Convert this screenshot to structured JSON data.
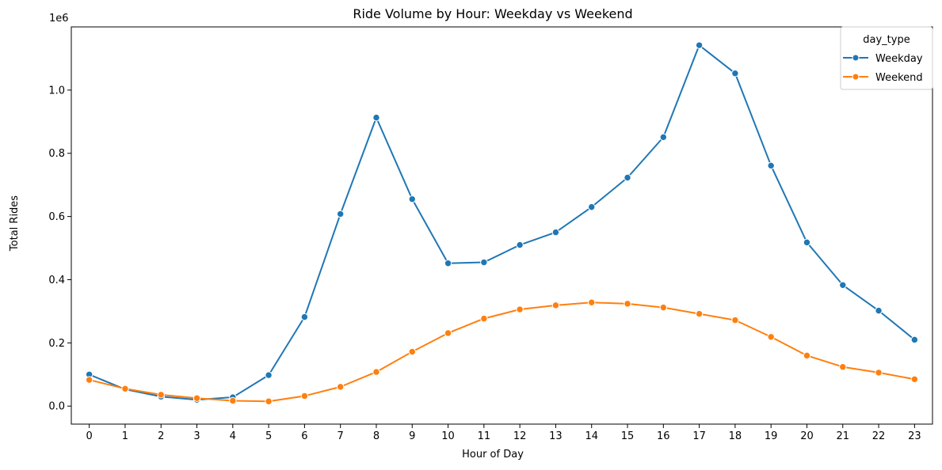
{
  "chart_data": {
    "type": "line",
    "title": "Ride Volume by Hour: Weekday vs Weekend",
    "xlabel": "Hour of Day",
    "ylabel": "Total Rides",
    "y_offset_text": "1e6",
    "y_scale": 1000000,
    "x": [
      0,
      1,
      2,
      3,
      4,
      5,
      6,
      7,
      8,
      9,
      10,
      11,
      12,
      13,
      14,
      15,
      16,
      17,
      18,
      19,
      20,
      21,
      22,
      23
    ],
    "xlim": [
      -0.5,
      23.5
    ],
    "ylim": [
      -0.057,
      1.2
    ],
    "y_ticks": [
      0.0,
      0.2,
      0.4,
      0.6,
      0.8,
      1.0
    ],
    "y_tick_labels": [
      "0.0",
      "0.2",
      "0.4",
      "0.6",
      "0.8",
      "1.0"
    ],
    "grid": false,
    "legend": {
      "title": "day_type",
      "placement": "top-right"
    },
    "series": [
      {
        "name": "Weekday",
        "color": "#1f77b4",
        "marker": "circle",
        "values": [
          0.1,
          0.053,
          0.03,
          0.02,
          0.028,
          0.098,
          0.282,
          0.608,
          0.913,
          0.655,
          0.452,
          0.455,
          0.51,
          0.55,
          0.63,
          0.723,
          0.851,
          1.142,
          1.053,
          0.761,
          0.518,
          0.383,
          0.302,
          0.21
        ]
      },
      {
        "name": "Weekend",
        "color": "#ff7f0e",
        "marker": "circle",
        "values": [
          0.083,
          0.055,
          0.036,
          0.025,
          0.017,
          0.015,
          0.032,
          0.061,
          0.108,
          0.172,
          0.231,
          0.277,
          0.306,
          0.319,
          0.328,
          0.324,
          0.312,
          0.292,
          0.272,
          0.219,
          0.16,
          0.124,
          0.106,
          0.085
        ]
      }
    ]
  }
}
